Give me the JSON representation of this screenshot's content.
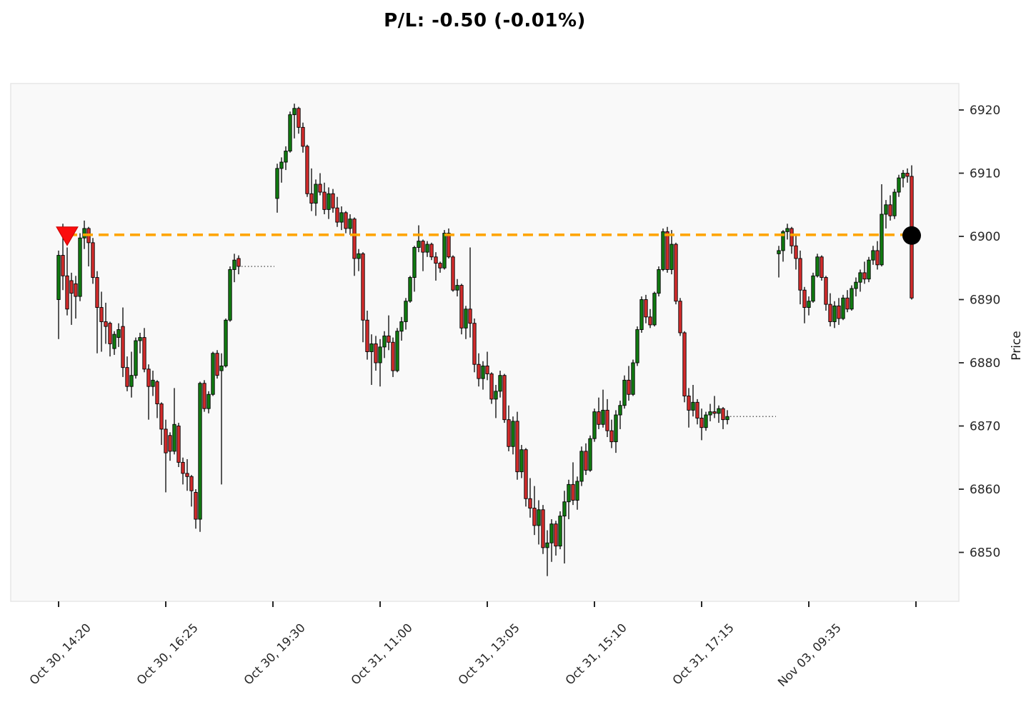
{
  "title": "P/L: -0.50 (-0.01%)",
  "y_axis": {
    "label": "Price",
    "ticks": [
      6850,
      6860,
      6870,
      6880,
      6890,
      6900,
      6910,
      6920
    ]
  },
  "x_axis": {
    "tick_labels": [
      "Oct 30, 14:20",
      "Oct 30, 16:25",
      "Oct 30, 19:30",
      "Oct 31, 11:00",
      "Oct 31, 13:05",
      "Oct 31, 15:10",
      "Oct 31, 17:15",
      "Nov 03, 09:35",
      ""
    ],
    "tick_every_slots": 25
  },
  "trade": {
    "pl_label": "P/L: -0.50 (-0.01%)",
    "level_price": 6900.25,
    "entry_candle_index": 2,
    "exit_candle_index": 180,
    "entry_marker": "red-down-triangle",
    "exit_marker": "black-circle",
    "line_color": "#FFA500"
  },
  "colors": {
    "up": "#117C11",
    "down": "#D42C2C",
    "edge": "#000000",
    "wick": "#000000",
    "plot_bg": "#f9f9f9",
    "spine": "#e8e8e8",
    "tick": "#262626",
    "gap_connector": "#2b2b2b",
    "entry_fill": "#FB0D0D",
    "entry_edge": "#C80000",
    "exit_fill": "#000000"
  },
  "chart_data": {
    "type": "candlestick",
    "title": "P/L: -0.50 (-0.01%)",
    "ylabel": "Price",
    "ylim": [
      6842,
      6924
    ],
    "grid": false,
    "legend": "none",
    "ohlc_format": [
      "open",
      "high",
      "low",
      "close"
    ],
    "gaps": [
      {
        "after_index": 42,
        "empty_slots": 8
      },
      {
        "after_index": 148,
        "empty_slots": 11
      }
    ],
    "candles": [
      [
        6890.0,
        6897.75,
        6883.75,
        6897.0
      ],
      [
        6897.0,
        6902.0,
        6891.5,
        6893.75
      ],
      [
        6893.75,
        6898.25,
        6887.5,
        6888.5
      ],
      [
        6893.0,
        6894.25,
        6886.0,
        6891.0
      ],
      [
        6892.5,
        6893.75,
        6887.0,
        6890.5
      ],
      [
        6890.5,
        6900.5,
        6889.75,
        6899.75
      ],
      [
        6899.75,
        6902.5,
        6898.0,
        6901.25
      ],
      [
        6901.25,
        6901.5,
        6895.25,
        6899.0
      ],
      [
        6899.0,
        6899.75,
        6892.5,
        6893.5
      ],
      [
        6893.5,
        6894.5,
        6881.5,
        6888.75
      ],
      [
        6888.75,
        6891.25,
        6881.75,
        6886.5
      ],
      [
        6886.5,
        6889.5,
        6883.0,
        6885.75
      ],
      [
        6886.25,
        6886.5,
        6881.0,
        6883.0
      ],
      [
        6882.25,
        6885.0,
        6881.25,
        6884.5
      ],
      [
        6884.0,
        6886.25,
        6882.5,
        6885.25
      ],
      [
        6885.75,
        6888.75,
        6877.75,
        6879.25
      ],
      [
        6879.25,
        6881.0,
        6875.5,
        6876.25
      ],
      [
        6876.25,
        6881.75,
        6874.5,
        6878.0
      ],
      [
        6878.0,
        6884.0,
        6877.5,
        6883.5
      ],
      [
        6883.5,
        6884.75,
        6881.5,
        6884.0
      ],
      [
        6884.0,
        6885.5,
        6878.5,
        6879.0
      ],
      [
        6879.0,
        6879.75,
        6871.0,
        6876.25
      ],
      [
        6876.25,
        6878.75,
        6874.75,
        6877.25
      ],
      [
        6877.0,
        6877.25,
        6871.25,
        6873.5
      ],
      [
        6873.5,
        6873.75,
        6867.0,
        6869.5
      ],
      [
        6869.5,
        6871.0,
        6859.5,
        6865.75
      ],
      [
        6868.5,
        6869.0,
        6864.5,
        6866.0
      ],
      [
        6866.0,
        6876.0,
        6865.5,
        6870.25
      ],
      [
        6870.0,
        6870.5,
        6863.5,
        6864.25
      ],
      [
        6864.25,
        6865.0,
        6860.75,
        6862.5
      ],
      [
        6862.5,
        6864.75,
        6859.75,
        6862.0
      ],
      [
        6862.0,
        6862.25,
        6857.25,
        6859.75
      ],
      [
        6859.5,
        6860.0,
        6853.75,
        6855.25
      ],
      [
        6855.25,
        6877.0,
        6853.25,
        6876.75
      ],
      [
        6876.75,
        6877.25,
        6872.25,
        6872.75
      ],
      [
        6872.75,
        6875.5,
        6872.0,
        6875.0
      ],
      [
        6875.0,
        6881.75,
        6874.75,
        6881.5
      ],
      [
        6881.5,
        6882.0,
        6877.5,
        6878.0
      ],
      [
        6878.75,
        6881.5,
        6860.75,
        6879.5
      ],
      [
        6879.5,
        6887.0,
        6879.25,
        6886.75
      ],
      [
        6886.75,
        6895.25,
        6886.5,
        6894.75
      ],
      [
        6894.75,
        6897.25,
        6892.75,
        6896.25
      ],
      [
        6896.5,
        6897.0,
        6894.0,
        6895.25
      ],
      [
        6906.0,
        6911.5,
        6903.75,
        6910.75
      ],
      [
        6910.75,
        6912.5,
        6908.5,
        6911.75
      ],
      [
        6911.75,
        6914.25,
        6910.5,
        6913.5
      ],
      [
        6913.5,
        6919.75,
        6913.25,
        6919.25
      ],
      [
        6919.25,
        6921.0,
        6915.5,
        6920.25
      ],
      [
        6920.25,
        6920.5,
        6916.25,
        6917.25
      ],
      [
        6917.25,
        6918.0,
        6913.25,
        6914.25
      ],
      [
        6914.25,
        6914.5,
        6906.25,
        6906.75
      ],
      [
        6906.75,
        6910.75,
        6904.0,
        6905.25
      ],
      [
        6905.25,
        6909.0,
        6903.25,
        6908.25
      ],
      [
        6908.25,
        6910.0,
        6906.5,
        6907.0
      ],
      [
        6907.0,
        6908.5,
        6903.5,
        6904.25
      ],
      [
        6904.25,
        6907.75,
        6902.75,
        6906.75
      ],
      [
        6906.75,
        6907.5,
        6903.75,
        6904.5
      ],
      [
        6904.5,
        6906.25,
        6901.5,
        6902.25
      ],
      [
        6902.25,
        6904.75,
        6901.0,
        6903.75
      ],
      [
        6903.75,
        6904.0,
        6900.5,
        6901.25
      ],
      [
        6901.25,
        6903.5,
        6900.25,
        6902.75
      ],
      [
        6902.75,
        6903.0,
        6893.75,
        6896.5
      ],
      [
        6896.5,
        6898.0,
        6894.5,
        6897.25
      ],
      [
        6897.25,
        6897.5,
        6883.25,
        6886.75
      ],
      [
        6886.75,
        6888.25,
        6880.5,
        6881.75
      ],
      [
        6881.75,
        6884.5,
        6876.5,
        6883.0
      ],
      [
        6883.0,
        6884.25,
        6878.75,
        6880.0
      ],
      [
        6880.0,
        6883.75,
        6876.25,
        6882.5
      ],
      [
        6882.5,
        6885.0,
        6880.75,
        6884.25
      ],
      [
        6884.25,
        6887.5,
        6882.0,
        6883.25
      ],
      [
        6883.25,
        6884.0,
        6877.75,
        6878.75
      ],
      [
        6878.75,
        6885.5,
        6878.5,
        6885.0
      ],
      [
        6885.0,
        6887.25,
        6883.5,
        6886.5
      ],
      [
        6886.5,
        6890.25,
        6885.25,
        6889.75
      ],
      [
        6889.75,
        6893.75,
        6889.5,
        6893.5
      ],
      [
        6893.5,
        6898.5,
        6891.25,
        6898.25
      ],
      [
        6898.25,
        6901.75,
        6897.5,
        6899.25
      ],
      [
        6899.25,
        6899.5,
        6894.5,
        6897.5
      ],
      [
        6897.5,
        6899.25,
        6896.75,
        6898.75
      ],
      [
        6898.75,
        6899.0,
        6896.25,
        6896.75
      ],
      [
        6896.75,
        6897.5,
        6893.0,
        6895.75
      ],
      [
        6895.75,
        6896.0,
        6894.25,
        6895.0
      ],
      [
        6895.0,
        6901.0,
        6894.75,
        6900.5
      ],
      [
        6900.5,
        6901.25,
        6896.5,
        6896.75
      ],
      [
        6896.75,
        6897.0,
        6891.25,
        6891.5
      ],
      [
        6891.5,
        6893.25,
        6890.5,
        6892.25
      ],
      [
        6892.25,
        6892.5,
        6884.5,
        6885.5
      ],
      [
        6885.5,
        6889.0,
        6883.75,
        6888.5
      ],
      [
        6888.5,
        6898.25,
        6884.0,
        6886.25
      ],
      [
        6886.25,
        6887.0,
        6878.5,
        6879.75
      ],
      [
        6879.75,
        6881.5,
        6876.25,
        6877.5
      ],
      [
        6877.5,
        6880.25,
        6875.75,
        6879.5
      ],
      [
        6879.5,
        6881.75,
        6877.25,
        6878.25
      ],
      [
        6878.25,
        6878.5,
        6873.5,
        6874.25
      ],
      [
        6874.25,
        6876.5,
        6871.25,
        6875.5
      ],
      [
        6875.5,
        6878.75,
        6874.5,
        6878.0
      ],
      [
        6878.0,
        6878.25,
        6870.5,
        6871.0
      ],
      [
        6871.0,
        6873.25,
        6866.0,
        6866.75
      ],
      [
        6866.75,
        6871.5,
        6865.5,
        6870.75
      ],
      [
        6870.75,
        6872.25,
        6861.5,
        6862.75
      ],
      [
        6862.75,
        6867.0,
        6861.75,
        6866.25
      ],
      [
        6866.25,
        6866.5,
        6857.25,
        6858.5
      ],
      [
        6858.5,
        6861.75,
        6855.5,
        6857.0
      ],
      [
        6857.0,
        6860.5,
        6852.75,
        6854.25
      ],
      [
        6854.25,
        6858.25,
        6851.25,
        6856.75
      ],
      [
        6856.75,
        6857.5,
        6849.75,
        6850.75
      ],
      [
        6850.75,
        6853.5,
        6846.25,
        6851.5
      ],
      [
        6851.5,
        6855.25,
        6848.5,
        6854.5
      ],
      [
        6854.5,
        6855.0,
        6849.5,
        6851.0
      ],
      [
        6851.0,
        6856.5,
        6850.5,
        6855.75
      ],
      [
        6855.75,
        6859.75,
        6848.25,
        6858.0
      ],
      [
        6858.0,
        6861.5,
        6855.25,
        6860.75
      ],
      [
        6860.75,
        6864.25,
        6857.5,
        6858.25
      ],
      [
        6858.25,
        6862.0,
        6856.75,
        6861.25
      ],
      [
        6861.25,
        6866.75,
        6860.5,
        6866.0
      ],
      [
        6866.0,
        6867.25,
        6862.25,
        6863.0
      ],
      [
        6863.0,
        6868.5,
        6862.75,
        6868.0
      ],
      [
        6868.0,
        6872.75,
        6867.5,
        6872.25
      ],
      [
        6872.25,
        6874.5,
        6869.5,
        6870.25
      ],
      [
        6870.25,
        6875.75,
        6869.75,
        6872.5
      ],
      [
        6872.5,
        6874.25,
        6868.25,
        6869.25
      ],
      [
        6869.25,
        6871.0,
        6866.5,
        6867.5
      ],
      [
        6867.5,
        6872.5,
        6865.75,
        6871.75
      ],
      [
        6871.75,
        6874.0,
        6869.5,
        6873.25
      ],
      [
        6873.25,
        6878.0,
        6872.75,
        6877.25
      ],
      [
        6877.25,
        6879.5,
        6874.0,
        6875.0
      ],
      [
        6875.0,
        6880.5,
        6874.75,
        6880.0
      ],
      [
        6880.0,
        6885.75,
        6879.5,
        6885.25
      ],
      [
        6885.25,
        6890.5,
        6884.75,
        6890.0
      ],
      [
        6890.0,
        6890.75,
        6886.25,
        6887.25
      ],
      [
        6887.25,
        6888.5,
        6885.5,
        6886.0
      ],
      [
        6886.0,
        6891.25,
        6885.75,
        6891.0
      ],
      [
        6891.0,
        6895.25,
        6890.5,
        6894.75
      ],
      [
        6894.75,
        6901.25,
        6894.5,
        6900.75
      ],
      [
        6900.75,
        6901.5,
        6894.25,
        6894.75
      ],
      [
        6894.75,
        6901.0,
        6894.0,
        6898.75
      ],
      [
        6898.75,
        6899.0,
        6889.25,
        6889.75
      ],
      [
        6889.75,
        6890.25,
        6884.25,
        6884.75
      ],
      [
        6884.75,
        6885.0,
        6873.75,
        6874.75
      ],
      [
        6874.75,
        6876.0,
        6869.75,
        6872.5
      ],
      [
        6872.5,
        6876.5,
        6871.5,
        6873.75
      ],
      [
        6873.75,
        6874.25,
        6870.25,
        6871.25
      ],
      [
        6871.25,
        6872.75,
        6867.75,
        6869.75
      ],
      [
        6869.75,
        6872.25,
        6869.25,
        6871.75
      ],
      [
        6871.75,
        6873.5,
        6870.75,
        6872.25
      ],
      [
        6872.25,
        6874.75,
        6871.25,
        6872.0
      ],
      [
        6872.0,
        6873.25,
        6870.5,
        6872.75
      ],
      [
        6872.75,
        6873.0,
        6869.5,
        6871.0
      ],
      [
        6871.0,
        6872.5,
        6870.25,
        6871.5
      ],
      [
        6897.25,
        6898.5,
        6893.5,
        6897.75
      ],
      [
        6897.75,
        6901.0,
        6896.0,
        6900.75
      ],
      [
        6900.75,
        6902.0,
        6899.5,
        6901.25
      ],
      [
        6901.25,
        6901.5,
        6897.25,
        6898.5
      ],
      [
        6898.5,
        6900.25,
        6894.75,
        6896.5
      ],
      [
        6896.5,
        6897.75,
        6889.25,
        6891.5
      ],
      [
        6891.5,
        6892.0,
        6886.25,
        6888.75
      ],
      [
        6888.75,
        6890.5,
        6887.5,
        6889.75
      ],
      [
        6889.75,
        6894.25,
        6889.5,
        6893.75
      ],
      [
        6893.75,
        6897.25,
        6893.5,
        6896.75
      ],
      [
        6896.75,
        6897.0,
        6893.0,
        6893.5
      ],
      [
        6893.5,
        6893.75,
        6888.25,
        6889.25
      ],
      [
        6889.25,
        6891.0,
        6885.75,
        6886.5
      ],
      [
        6886.5,
        6889.75,
        6885.5,
        6889.0
      ],
      [
        6889.0,
        6890.25,
        6886.0,
        6887.0
      ],
      [
        6887.0,
        6890.75,
        6886.75,
        6890.25
      ],
      [
        6890.25,
        6891.5,
        6888.0,
        6888.5
      ],
      [
        6888.5,
        6892.25,
        6888.25,
        6891.75
      ],
      [
        6891.75,
        6893.5,
        6890.5,
        6892.75
      ],
      [
        6892.75,
        6894.75,
        6891.25,
        6894.25
      ],
      [
        6894.25,
        6896.0,
        6892.5,
        6893.25
      ],
      [
        6893.25,
        6896.75,
        6892.75,
        6896.25
      ],
      [
        6896.25,
        6898.5,
        6895.5,
        6897.75
      ],
      [
        6897.75,
        6899.25,
        6894.75,
        6895.5
      ],
      [
        6895.5,
        6908.25,
        6895.25,
        6903.5
      ],
      [
        6903.5,
        6905.75,
        6901.25,
        6905.0
      ],
      [
        6905.0,
        6906.5,
        6902.5,
        6903.25
      ],
      [
        6903.25,
        6907.5,
        6902.75,
        6907.0
      ],
      [
        6907.0,
        6909.75,
        6906.25,
        6909.25
      ],
      [
        6909.25,
        6910.5,
        6907.75,
        6910.0
      ],
      [
        6910.0,
        6910.75,
        6908.5,
        6909.5
      ],
      [
        6909.5,
        6911.25,
        6890.0,
        6890.25
      ]
    ]
  }
}
